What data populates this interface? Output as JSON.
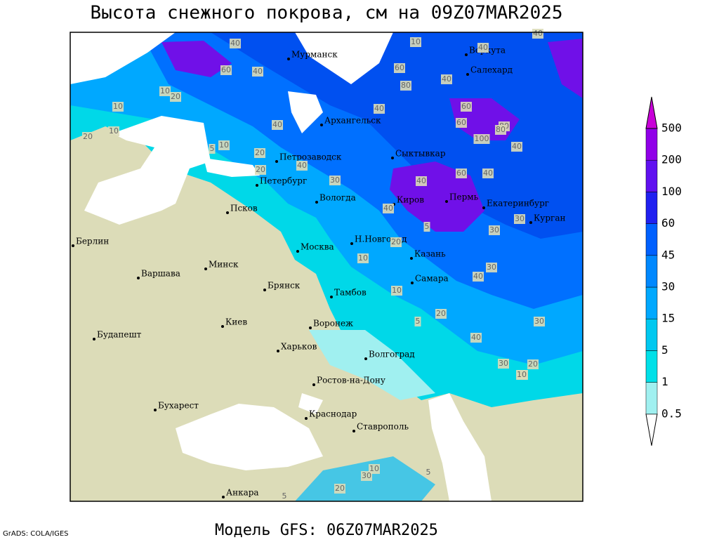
{
  "title": "Высота снежного покрова, см на 09Z07MAR2025",
  "footer": "Модель GFS: 06Z07MAR2025",
  "credit": "GrADS: COLA/IGES",
  "legend": {
    "levels": [
      {
        "label": "0.5",
        "color": "#a0f0f0"
      },
      {
        "label": "1",
        "color": "#00e0e8"
      },
      {
        "label": "5",
        "color": "#00c8f0"
      },
      {
        "label": "15",
        "color": "#00a8ff"
      },
      {
        "label": "30",
        "color": "#0088ff"
      },
      {
        "label": "45",
        "color": "#0060ff"
      },
      {
        "label": "60",
        "color": "#2020f0"
      },
      {
        "label": "100",
        "color": "#6010f0"
      },
      {
        "label": "200",
        "color": "#9000e8"
      },
      {
        "label": "500",
        "color": "#c800d8"
      }
    ],
    "below_color": "#ffffff"
  },
  "cities": [
    "Мурманск",
    "Воркута",
    "Салехард",
    "Архангельск",
    "Петрозаводск",
    "Сыктывкар",
    "Петербург",
    "Вологда",
    "Киров",
    "Пермь",
    "Екатеринбург",
    "Курган",
    "Псков",
    "Берлин",
    "Н.Новгород",
    "Казань",
    "Москва",
    "Минск",
    "Варшава",
    "Самара",
    "Брянск",
    "Тамбов",
    "Киев",
    "Воронеж",
    "Будапешт",
    "Харьков",
    "Волгоград",
    "Ростов-на-Дону",
    "Бухарест",
    "Краснодар",
    "Ставрополь",
    "Анкара"
  ],
  "contour_labels": [
    "40",
    "10",
    "40",
    "40",
    "60",
    "40",
    "20",
    "10",
    "10",
    "20",
    "10",
    "5",
    "10",
    "20",
    "40",
    "40",
    "60",
    "80",
    "80",
    "40",
    "40",
    "60",
    "60",
    "100",
    "80",
    "60",
    "40",
    "40",
    "40",
    "40",
    "30",
    "30",
    "5",
    "10",
    "40",
    "30",
    "30",
    "20",
    "20",
    "5",
    "30",
    "10",
    "30",
    "40",
    "30",
    "20",
    "10",
    "20",
    "10",
    "5",
    "30",
    "20",
    "5"
  ]
}
